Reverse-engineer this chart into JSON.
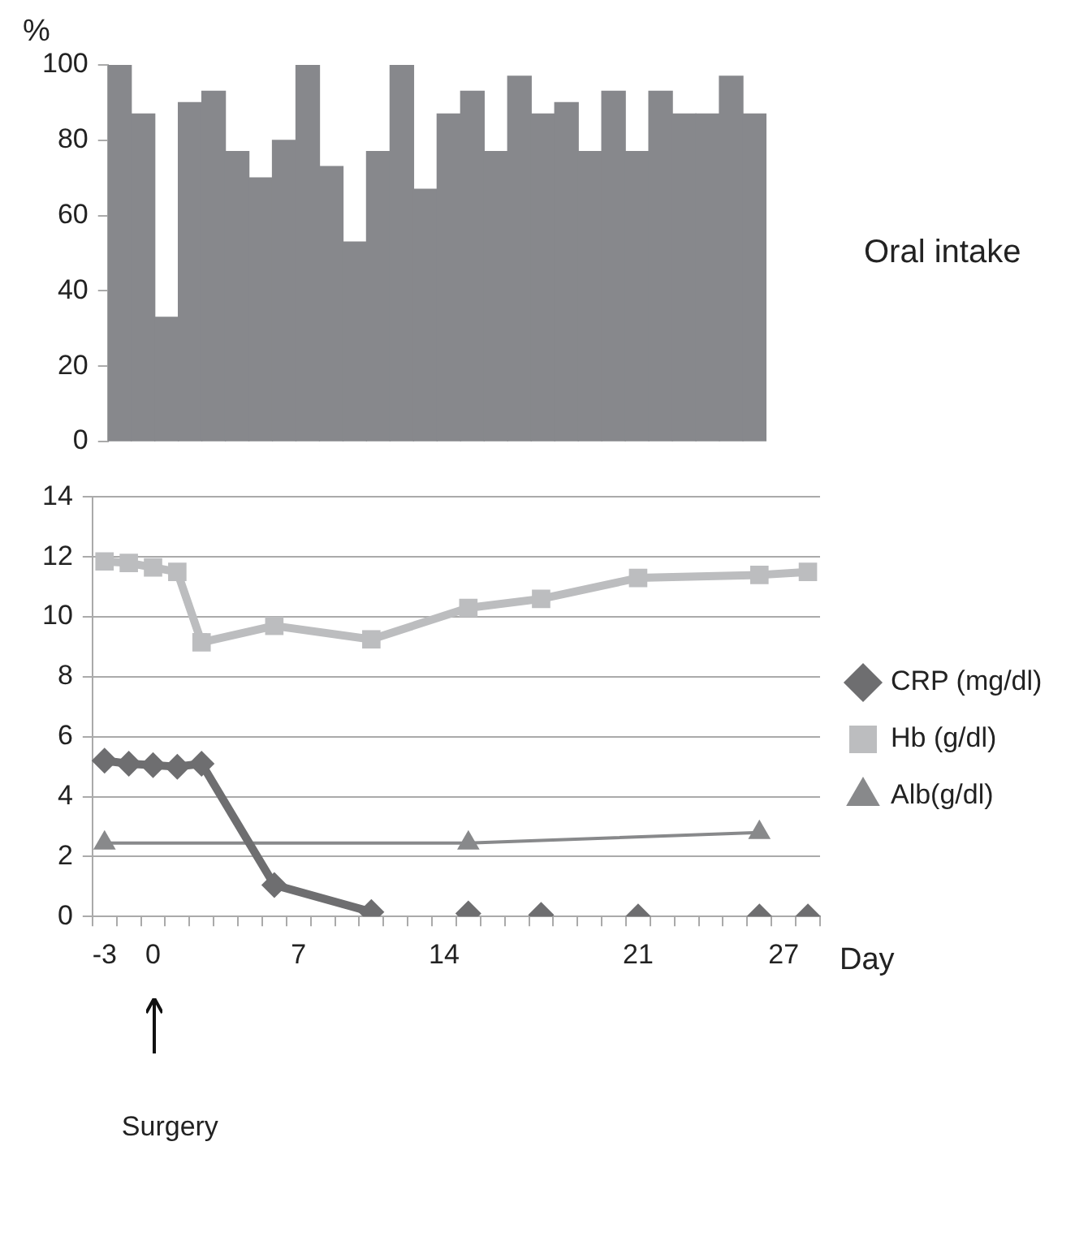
{
  "chart_data": [
    {
      "type": "bar",
      "ylabel": "%",
      "categories": [
        null,
        null,
        null,
        null,
        null,
        null,
        null,
        null,
        null,
        null,
        null,
        null,
        null,
        null,
        null,
        null,
        null,
        null,
        null,
        null,
        null,
        null,
        null,
        null,
        null,
        null,
        null,
        null
      ],
      "values": [
        100,
        87,
        33,
        90,
        93,
        77,
        70,
        80,
        100,
        73,
        53,
        77,
        100,
        67,
        87,
        93,
        77,
        97,
        87,
        90,
        77,
        93,
        77,
        93,
        87,
        87,
        97,
        87
      ],
      "color": "#87888c",
      "ylim": [
        0,
        100
      ],
      "yticks": [
        0,
        20,
        40,
        60,
        80,
        100
      ],
      "grid": false,
      "legend": false,
      "tick_labels": "y",
      "annotations": [
        "Oral intake"
      ]
    },
    {
      "type": "line",
      "xlabel": "Day",
      "categories": [
        "-3",
        null,
        "0",
        null,
        null,
        null,
        null,
        null,
        "7",
        null,
        null,
        null,
        null,
        null,
        "14",
        null,
        null,
        null,
        null,
        null,
        null,
        null,
        "21",
        null,
        null,
        null,
        null,
        null,
        "27",
        null
      ],
      "series": [
        {
          "name": "CRP (mg/dl)",
          "color": "#6e6e70",
          "marker": "diamond",
          "values": [
            5.2,
            5.1,
            5.05,
            5.0,
            5.1,
            null,
            null,
            1.05,
            null,
            null,
            null,
            0.15,
            null,
            null,
            null,
            null,
            null,
            null,
            null,
            null,
            null,
            null,
            null,
            null,
            null,
            null,
            null,
            null,
            null,
            null
          ]
        },
        {
          "name": "Hb (g/dl)",
          "color": "#bcbdbf",
          "marker": "square",
          "values": [
            11.85,
            11.8,
            11.65,
            11.5,
            9.15,
            null,
            null,
            9.7,
            null,
            null,
            null,
            9.25,
            null,
            null,
            null,
            10.3,
            null,
            null,
            10.6,
            null,
            null,
            null,
            11.3,
            null,
            null,
            null,
            null,
            11.4,
            null,
            11.5
          ]
        },
        {
          "name": "Alb(g/dl)",
          "color": "#88898b",
          "marker": "triangle",
          "values": [
            2.45,
            null,
            null,
            null,
            null,
            null,
            null,
            null,
            null,
            null,
            null,
            null,
            null,
            null,
            null,
            2.45,
            null,
            null,
            null,
            null,
            null,
            null,
            null,
            null,
            null,
            null,
            null,
            2.8,
            null,
            null
          ]
        },
        {
          "type": "scatter",
          "color": "#6e6e70",
          "marker": "diamond",
          "values": [
            null,
            null,
            null,
            null,
            null,
            null,
            null,
            null,
            null,
            null,
            null,
            null,
            null,
            null,
            null,
            0.1,
            null,
            null,
            0.05,
            null,
            null,
            null,
            0,
            null,
            null,
            null,
            null,
            0,
            null,
            0
          ]
        }
      ],
      "ylim": [
        0,
        14
      ],
      "yticks": [
        0,
        2,
        4,
        6,
        8,
        10,
        12,
        14
      ],
      "grid": "y",
      "legend": "right",
      "annotations": [
        "Surgery"
      ]
    }
  ]
}
